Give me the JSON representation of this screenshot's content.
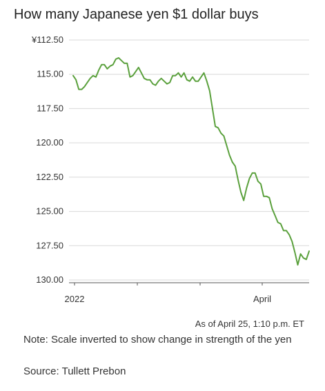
{
  "chart_data": {
    "type": "line",
    "title": "How many Japanese yen $1 dollar buys",
    "xlabel": "",
    "ylabel": "",
    "y_inverted": true,
    "ylim": [
      112.5,
      130.0
    ],
    "y_ticks": [
      "¥112.50",
      "115.00",
      "117.50",
      "120.00",
      "122.50",
      "125.00",
      "127.50",
      "130.00"
    ],
    "y_tick_values": [
      112.5,
      115.0,
      117.5,
      120.0,
      122.5,
      125.0,
      127.5,
      130.0
    ],
    "x_tick_labels": [
      "2022",
      "",
      "",
      "April"
    ],
    "grid": true,
    "series_color": "#5aa03c",
    "series": [
      {
        "name": "",
        "values": [
          115.1,
          115.4,
          116.1,
          116.1,
          115.9,
          115.6,
          115.3,
          115.1,
          115.2,
          114.7,
          114.3,
          114.3,
          114.6,
          114.4,
          114.3,
          113.9,
          113.8,
          114.0,
          114.2,
          114.2,
          115.2,
          115.1,
          114.8,
          114.5,
          114.9,
          115.3,
          115.4,
          115.4,
          115.7,
          115.8,
          115.5,
          115.3,
          115.5,
          115.7,
          115.6,
          115.1,
          115.1,
          114.9,
          115.2,
          114.9,
          115.4,
          115.5,
          115.2,
          115.5,
          115.5,
          115.2,
          114.9,
          115.5,
          116.2,
          117.5,
          118.8,
          118.9,
          119.3,
          119.5,
          120.2,
          120.9,
          121.4,
          121.7,
          122.7,
          123.6,
          124.2,
          123.3,
          122.6,
          122.2,
          122.2,
          122.8,
          123.0,
          123.9,
          123.9,
          124.0,
          124.8,
          125.3,
          125.8,
          125.9,
          126.4,
          126.4,
          126.7,
          127.2,
          128.0,
          128.9,
          128.1,
          128.4,
          128.5,
          127.9
        ]
      }
    ],
    "timestamp": "As of April 25, 1:10 p.m. ET",
    "note": "Note: Scale inverted to show change in strength of the yen",
    "source": "Source: Tullett Prebon"
  }
}
